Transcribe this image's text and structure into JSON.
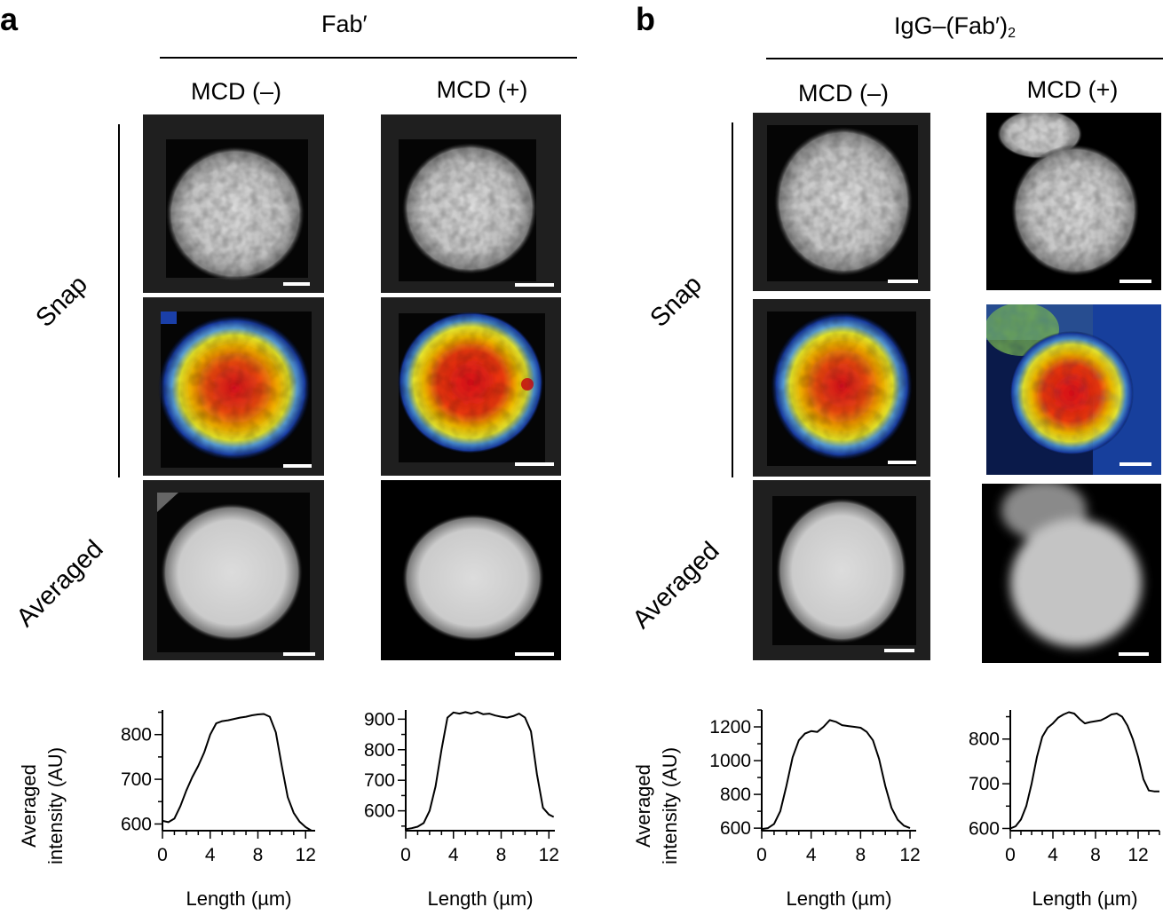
{
  "panels": {
    "a": {
      "letter": "a",
      "title": "Fab′",
      "columns": [
        "MCD (–)",
        "MCD (+)"
      ],
      "rows": {
        "snap": "Snap",
        "averaged": "Averaged"
      }
    },
    "b": {
      "letter": "b",
      "title": "IgG–(Fab′)",
      "title_sub": "2",
      "columns": [
        "MCD (–)",
        "MCD (+)"
      ],
      "rows": {
        "snap": "Snap",
        "averaged": "Averaged"
      }
    }
  },
  "colors": {
    "heat_red": "#e3001b",
    "heat_yellow": "#f7e600",
    "heat_blue": "#1a3fa8",
    "gray_cell": "#c8c8c8"
  },
  "chart_data": [
    {
      "id": "plot-a1",
      "type": "line",
      "xlabel": "Length (µm)",
      "ylabel_lines": [
        "Averaged",
        "intensity (AU)"
      ],
      "xlim": [
        0,
        12.8
      ],
      "ylim": [
        585,
        855
      ],
      "xticks": [
        0,
        4,
        8,
        12
      ],
      "yticks": [
        600,
        700,
        800
      ],
      "x": [
        0,
        0.5,
        1,
        1.5,
        2,
        2.5,
        3,
        3.5,
        4,
        4.5,
        5,
        5.5,
        6,
        6.5,
        7,
        7.5,
        8,
        8.5,
        9,
        9.5,
        10,
        10.5,
        11,
        11.5,
        12,
        12.5
      ],
      "y": [
        607,
        604,
        612,
        640,
        675,
        705,
        730,
        760,
        800,
        825,
        830,
        832,
        835,
        838,
        840,
        843,
        845,
        846,
        840,
        805,
        730,
        660,
        625,
        605,
        593,
        585
      ]
    },
    {
      "id": "plot-a2",
      "type": "line",
      "xlabel": "Length (µm)",
      "ylabel_lines": [],
      "xlim": [
        0,
        12.5
      ],
      "ylim": [
        535,
        930
      ],
      "xticks": [
        0,
        4,
        8,
        12
      ],
      "yticks": [
        600,
        700,
        800,
        900
      ],
      "x": [
        0,
        0.5,
        1,
        1.5,
        2,
        2.5,
        3,
        3.5,
        4,
        4.5,
        5,
        5.5,
        6,
        6.5,
        7,
        7.5,
        8,
        8.5,
        9,
        9.5,
        10,
        10.5,
        11,
        11.5,
        12,
        12.4
      ],
      "y": [
        540,
        543,
        548,
        560,
        600,
        680,
        800,
        905,
        922,
        918,
        923,
        918,
        924,
        916,
        918,
        912,
        908,
        905,
        910,
        918,
        905,
        860,
        720,
        610,
        588,
        580
      ]
    },
    {
      "id": "plot-b1",
      "type": "line",
      "xlabel": "Length (µm)",
      "ylabel_lines": [
        "Averaged",
        "intensity (AU)"
      ],
      "xlim": [
        0,
        12.5
      ],
      "ylim": [
        585,
        1300
      ],
      "xticks": [
        0,
        4,
        8,
        12
      ],
      "yticks": [
        600,
        800,
        1000,
        1200
      ],
      "x": [
        0,
        0.5,
        1,
        1.5,
        2,
        2.5,
        3,
        3.5,
        4,
        4.5,
        5,
        5.5,
        6,
        6.5,
        7,
        7.5,
        8,
        8.5,
        9,
        9.5,
        10,
        10.5,
        11,
        11.5,
        12
      ],
      "y": [
        595,
        600,
        625,
        700,
        850,
        1020,
        1120,
        1160,
        1175,
        1170,
        1200,
        1240,
        1230,
        1210,
        1205,
        1200,
        1195,
        1170,
        1120,
        1010,
        850,
        720,
        650,
        615,
        600
      ]
    },
    {
      "id": "plot-b2",
      "type": "line",
      "xlabel": "Length (µm)",
      "ylabel_lines": [],
      "xlim": [
        0,
        14
      ],
      "ylim": [
        595,
        865
      ],
      "xticks": [
        0,
        4,
        8,
        12
      ],
      "yticks": [
        600,
        700,
        800
      ],
      "x": [
        0,
        0.5,
        1,
        1.5,
        2,
        2.5,
        3,
        3.5,
        4,
        4.5,
        5,
        5.5,
        6,
        6.5,
        7,
        7.5,
        8,
        8.5,
        9,
        9.5,
        10,
        10.5,
        11,
        11.5,
        12,
        12.5,
        13,
        13.5,
        14
      ],
      "y": [
        600,
        605,
        620,
        650,
        700,
        760,
        805,
        825,
        835,
        848,
        855,
        860,
        857,
        845,
        835,
        838,
        840,
        842,
        848,
        855,
        857,
        850,
        830,
        800,
        760,
        710,
        685,
        683,
        683
      ]
    }
  ]
}
